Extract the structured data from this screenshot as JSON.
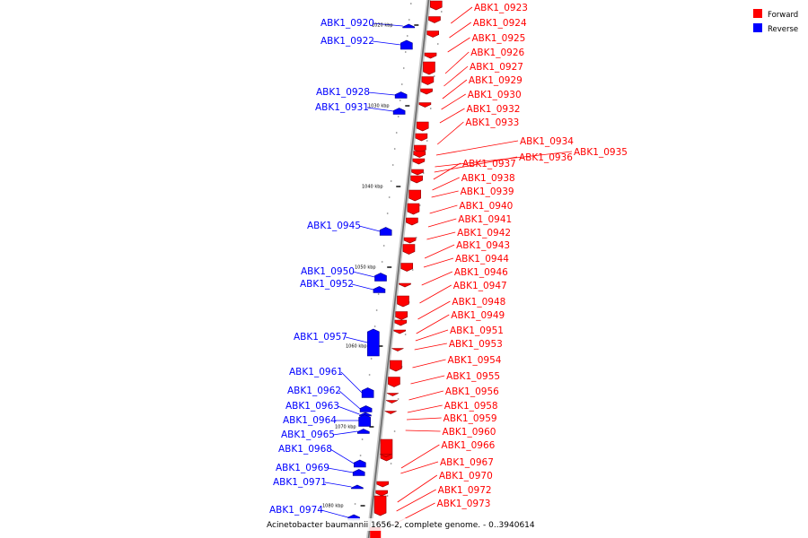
{
  "caption": "Acinetobacter baumannii 1656-2, complete genome. - 0..3940614",
  "legend": {
    "forward": {
      "label": "Forward",
      "color": "#ff0000"
    },
    "reverse": {
      "label": "Reverse",
      "color": "#0000ff"
    }
  },
  "ticks": [
    "1020 kbp",
    "1030 kbp",
    "1040 kbp",
    "1050 kbp",
    "1060 kbp",
    "1070 kbp",
    "1080 kbp"
  ],
  "reverse_genes": [
    "ABK1_0920",
    "ABK1_0922",
    "ABK1_0928",
    "ABK1_0931",
    "ABK1_0945",
    "ABK1_0950",
    "ABK1_0952",
    "ABK1_0957",
    "ABK1_0961",
    "ABK1_0962",
    "ABK1_0963",
    "ABK1_0964",
    "ABK1_0965",
    "ABK1_0968",
    "ABK1_0969",
    "ABK1_0971",
    "ABK1_0974"
  ],
  "forward_genes": [
    "ABK1_0923",
    "ABK1_0924",
    "ABK1_0925",
    "ABK1_0926",
    "ABK1_0927",
    "ABK1_0929",
    "ABK1_0930",
    "ABK1_0932",
    "ABK1_0933",
    "ABK1_0934",
    "ABK1_0935",
    "ABK1_0936",
    "ABK1_0937",
    "ABK1_0938",
    "ABK1_0939",
    "ABK1_0940",
    "ABK1_0941",
    "ABK1_0942",
    "ABK1_0943",
    "ABK1_0944",
    "ABK1_0946",
    "ABK1_0947",
    "ABK1_0948",
    "ABK1_0949",
    "ABK1_0951",
    "ABK1_0953",
    "ABK1_0954",
    "ABK1_0955",
    "ABK1_0956",
    "ABK1_0958",
    "ABK1_0959",
    "ABK1_0960",
    "ABK1_0966",
    "ABK1_0967",
    "ABK1_0970",
    "ABK1_0972",
    "ABK1_0973"
  ]
}
